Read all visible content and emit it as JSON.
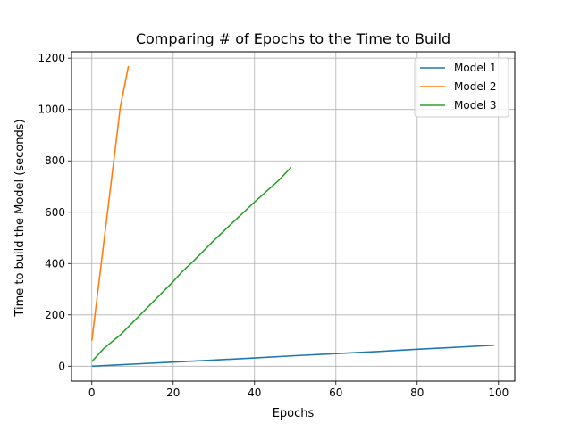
{
  "chart_data": {
    "type": "line",
    "title": "Comparing # of Epochs to the Time to Build",
    "xlabel": "Epochs",
    "ylabel": "Time to build the Model (seconds)",
    "xlim": [
      -5,
      104
    ],
    "ylim": [
      -58,
      1225
    ],
    "xticks": [
      0,
      20,
      40,
      60,
      80,
      100
    ],
    "yticks": [
      0,
      200,
      400,
      600,
      800,
      1000,
      1200
    ],
    "grid": true,
    "legend_position": "upper-right",
    "series": [
      {
        "name": "Model 1",
        "color": "#1f77b4",
        "x": [
          0,
          10,
          20,
          30,
          40,
          50,
          60,
          70,
          80,
          90,
          99
        ],
        "y": [
          0,
          8,
          16,
          24,
          32,
          41,
          49,
          57,
          66,
          74,
          82
        ]
      },
      {
        "name": "Model 2",
        "color": "#ff7f0e",
        "x": [
          0,
          1,
          2,
          3,
          4,
          5,
          6,
          7,
          8,
          9
        ],
        "y": [
          100,
          230,
          360,
          490,
          620,
          750,
          880,
          1010,
          1090,
          1170
        ]
      },
      {
        "name": "Model 3",
        "color": "#2ca02c",
        "x": [
          0,
          3,
          7,
          10,
          15,
          20,
          22,
          25,
          30,
          35,
          40,
          46,
          49
        ],
        "y": [
          18,
          70,
          122,
          170,
          250,
          330,
          365,
          410,
          490,
          565,
          640,
          725,
          775
        ]
      }
    ]
  }
}
